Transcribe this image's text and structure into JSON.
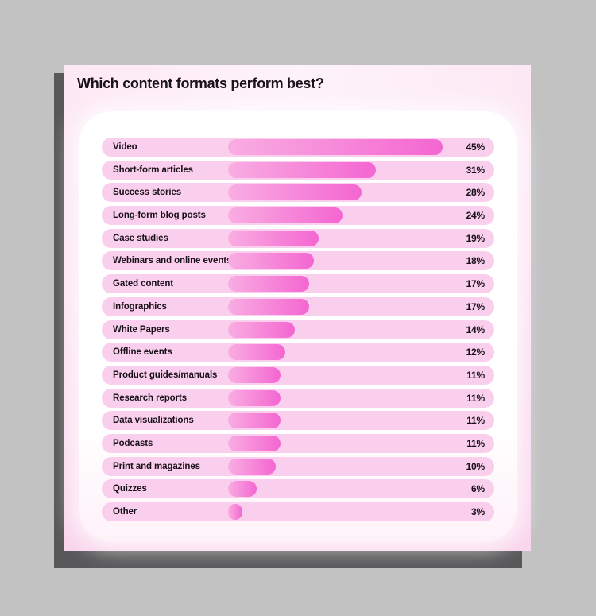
{
  "colors": {
    "page_bg": "#c3c2c3",
    "card_shadow": "#58585a",
    "card_bg_top": "#fef3fa",
    "card_bg_mid": "#fce4f2",
    "card_bg_bottom": "#fad4ec",
    "panel_bottom": "#fef2f9",
    "row_track": "#facfed",
    "bar_from": "#f9ade2",
    "bar_to": "#f466d1",
    "text": "#191119"
  },
  "chart_data": {
    "type": "bar",
    "orientation": "horizontal",
    "title": "Which content formats perform best?",
    "categories": [
      "Video",
      "Short-form articles",
      "Success stories",
      "Long-form blog posts",
      "Case studies",
      "Webinars and online events",
      "Gated content",
      "Infographics",
      "White Papers",
      "Offline events",
      "Product guides/manuals",
      "Research reports",
      "Data visualizations",
      "Podcasts",
      "Print and magazines",
      "Quizzes",
      "Other"
    ],
    "values": [
      45,
      31,
      28,
      24,
      19,
      18,
      17,
      17,
      14,
      12,
      11,
      11,
      11,
      11,
      10,
      6,
      3
    ],
    "value_labels": [
      "45%",
      "31%",
      "28%",
      "24%",
      "19%",
      "18%",
      "17%",
      "17%",
      "14%",
      "12%",
      "11%",
      "11%",
      "11%",
      "11%",
      "10%",
      "6%",
      "3%"
    ],
    "unit": "%",
    "xlim": [
      0,
      50
    ],
    "grid": false,
    "legend": false
  }
}
